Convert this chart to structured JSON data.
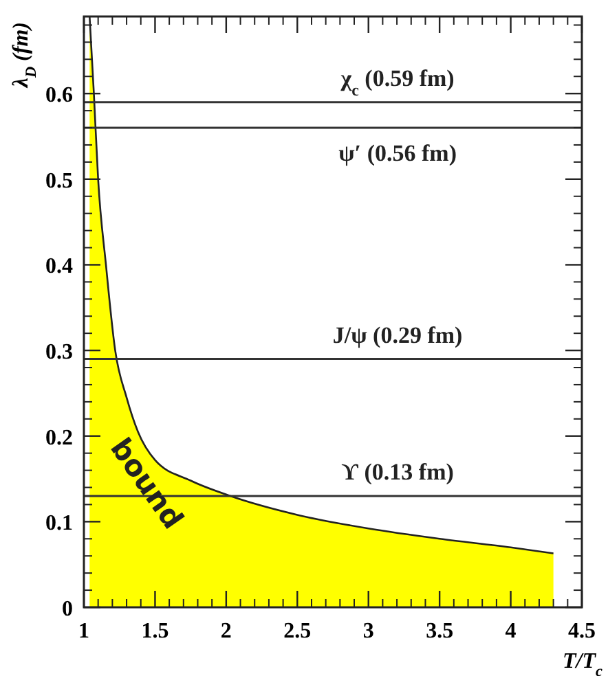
{
  "chart_data": {
    "type": "area",
    "xlabel": "T/T$_{c}$",
    "ylabel": "λ$_{D}$ (fm)",
    "xlim": [
      1,
      4.5
    ],
    "ylim": [
      0,
      0.69
    ],
    "xticks": [
      1,
      1.5,
      2,
      2.5,
      3,
      3.5,
      4,
      4.5
    ],
    "yticks": [
      0,
      0.1,
      0.2,
      0.3,
      0.4,
      0.5,
      0.6
    ],
    "series": [
      {
        "color": "#ffff00",
        "x": [
          1.04,
          1.07,
          1.1,
          1.155,
          1.22,
          1.3,
          1.38,
          1.5,
          1.75,
          2.03,
          2.5,
          3,
          3.5,
          4,
          4.3
        ],
        "values": [
          0.69,
          0.6,
          0.5,
          0.4,
          0.3,
          0.245,
          0.205,
          0.172,
          0.148,
          0.13,
          0.108,
          0.092,
          0.08,
          0.07,
          0.063
        ]
      }
    ],
    "ref_lines": [
      {
        "axis": "y",
        "value": 0.59,
        "label": "χ$_{c}$ (0.59 fm)",
        "color": "#333333"
      },
      {
        "axis": "y",
        "value": 0.56,
        "label": "ψ′ (0.56 fm)",
        "color": "#333333"
      },
      {
        "axis": "y",
        "value": 0.29,
        "label": "J/ψ (0.29 fm)",
        "color": "#333333"
      },
      {
        "axis": "y",
        "value": 0.13,
        "label": "ϒ (0.13 fm)",
        "color": "#333333"
      }
    ],
    "annotations": [
      "bound"
    ]
  }
}
